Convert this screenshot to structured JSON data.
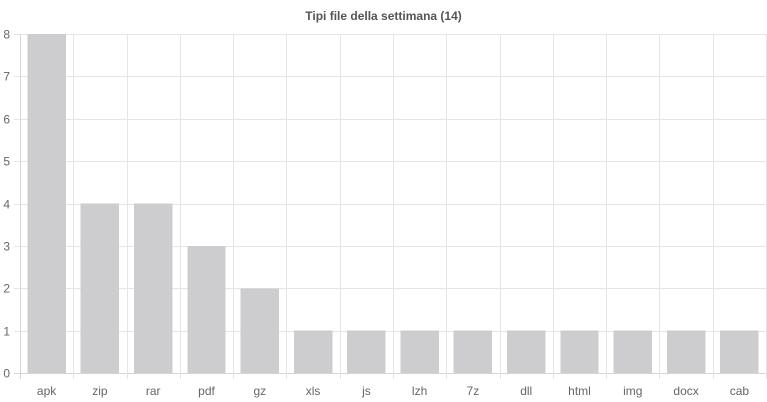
{
  "chart_data": {
    "type": "bar",
    "title": "Tipi file della settimana (14)",
    "categories": [
      "apk",
      "zip",
      "rar",
      "pdf",
      "gz",
      "xls",
      "js",
      "lzh",
      "7z",
      "dll",
      "html",
      "img",
      "docx",
      "cab"
    ],
    "values": [
      8,
      4,
      4,
      3,
      2,
      1,
      1,
      1,
      1,
      1,
      1,
      1,
      1,
      1
    ],
    "ylim": [
      0,
      8
    ],
    "yticks": [
      0,
      1,
      2,
      3,
      4,
      5,
      6,
      7,
      8
    ],
    "xlabel": "",
    "ylabel": "",
    "grid": true,
    "bar_color": "#cdcdd0"
  }
}
